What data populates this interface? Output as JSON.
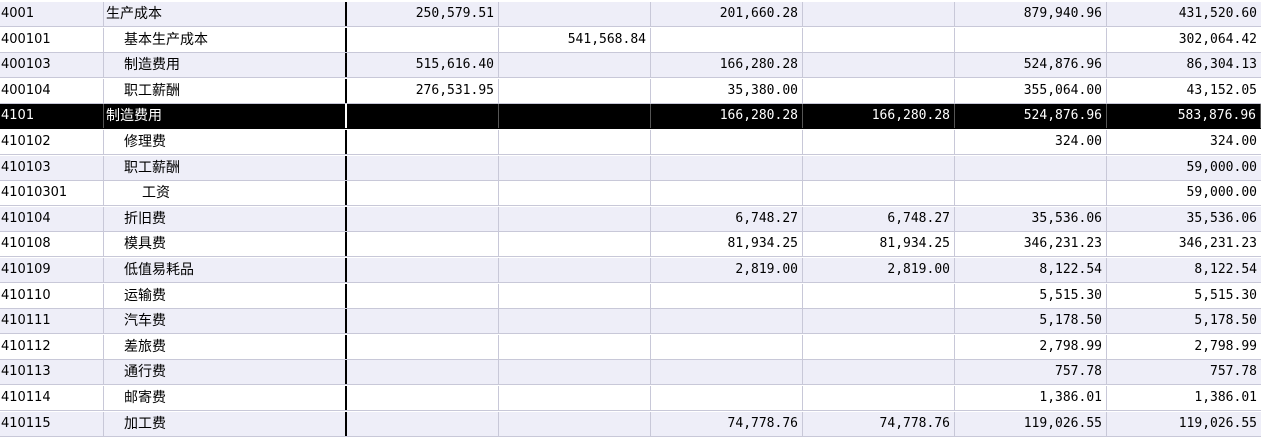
{
  "rows": [
    {
      "code": "4001",
      "name": "生产成本",
      "level": 0,
      "v": [
        "250,579.51",
        "",
        "201,660.28",
        "",
        "879,940.96",
        "431,520.60"
      ]
    },
    {
      "code": "400101",
      "name": "基本生产成本",
      "level": 1,
      "v": [
        "",
        "541,568.84",
        "",
        "",
        "",
        "302,064.42"
      ]
    },
    {
      "code": "400103",
      "name": "制造费用",
      "level": 1,
      "v": [
        "515,616.40",
        "",
        "166,280.28",
        "",
        "524,876.96",
        "86,304.13"
      ]
    },
    {
      "code": "400104",
      "name": "职工薪酬",
      "level": 1,
      "v": [
        "276,531.95",
        "",
        "35,380.00",
        "",
        "355,064.00",
        "43,152.05"
      ]
    },
    {
      "code": "4101",
      "name": "制造费用",
      "level": 0,
      "selected": true,
      "v": [
        "",
        "",
        "166,280.28",
        "166,280.28",
        "524,876.96",
        "583,876.96"
      ]
    },
    {
      "code": "410102",
      "name": "修理费",
      "level": 1,
      "v": [
        "",
        "",
        "",
        "",
        "324.00",
        "324.00"
      ]
    },
    {
      "code": "410103",
      "name": "职工薪酬",
      "level": 1,
      "v": [
        "",
        "",
        "",
        "",
        "",
        "59,000.00"
      ]
    },
    {
      "code": "41010301",
      "name": "工资",
      "level": 2,
      "v": [
        "",
        "",
        "",
        "",
        "",
        "59,000.00"
      ]
    },
    {
      "code": "410104",
      "name": "折旧费",
      "level": 1,
      "v": [
        "",
        "",
        "6,748.27",
        "6,748.27",
        "35,536.06",
        "35,536.06"
      ]
    },
    {
      "code": "410108",
      "name": "模具费",
      "level": 1,
      "v": [
        "",
        "",
        "81,934.25",
        "81,934.25",
        "346,231.23",
        "346,231.23"
      ]
    },
    {
      "code": "410109",
      "name": "低值易耗品",
      "level": 1,
      "v": [
        "",
        "",
        "2,819.00",
        "2,819.00",
        "8,122.54",
        "8,122.54"
      ]
    },
    {
      "code": "410110",
      "name": "运输费",
      "level": 1,
      "v": [
        "",
        "",
        "",
        "",
        "5,515.30",
        "5,515.30"
      ]
    },
    {
      "code": "410111",
      "name": "汽车费",
      "level": 1,
      "v": [
        "",
        "",
        "",
        "",
        "5,178.50",
        "5,178.50"
      ]
    },
    {
      "code": "410112",
      "name": "差旅费",
      "level": 1,
      "v": [
        "",
        "",
        "",
        "",
        "2,798.99",
        "2,798.99"
      ]
    },
    {
      "code": "410113",
      "name": "通行费",
      "level": 1,
      "v": [
        "",
        "",
        "",
        "",
        "757.78",
        "757.78"
      ]
    },
    {
      "code": "410114",
      "name": "邮寄费",
      "level": 1,
      "v": [
        "",
        "",
        "",
        "",
        "1,386.01",
        "1,386.01"
      ]
    },
    {
      "code": "410115",
      "name": "加工费",
      "level": 1,
      "v": [
        "",
        "",
        "74,778.76",
        "74,778.76",
        "119,026.55",
        "119,026.55"
      ]
    }
  ]
}
